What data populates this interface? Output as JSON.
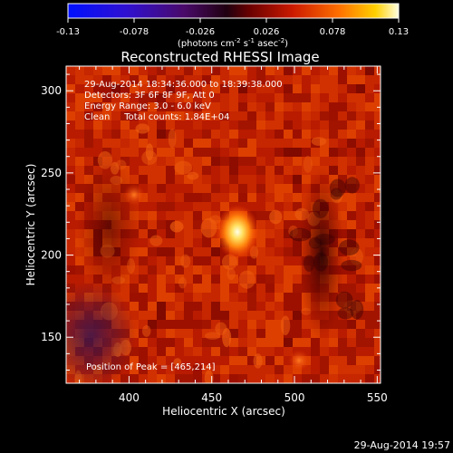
{
  "colorbar": {
    "ticks": [
      "-0.13",
      "-0.078",
      "-0.026",
      "0.026",
      "0.078",
      "0.13"
    ],
    "units_main": "(photons cm",
    "units_exp1": "-2",
    "units_mid": " s",
    "units_exp2": "-1",
    "units_tail": " asec",
    "units_exp3": "-2",
    "units_close": ")"
  },
  "plot": {
    "title": "Reconstructed RHESSI Image",
    "xlabel": "Heliocentric X (arcsec)",
    "ylabel": "Heliocentric Y (arcsec)",
    "x_range": [
      362,
      552
    ],
    "y_range": [
      122,
      315
    ],
    "x_ticks": [
      "400",
      "450",
      "500",
      "550"
    ],
    "x_tick_values": [
      400,
      450,
      500,
      550
    ],
    "y_ticks": [
      "150",
      "200",
      "250",
      "300"
    ],
    "y_tick_values": [
      150,
      200,
      250,
      300
    ],
    "info_lines": [
      "29-Aug-2014 18:34:36.000 to 18:39:38.000",
      "Detectors: 3F 6F 8F 9F, Att 0",
      "Energy Range: 3.0 - 6.0 keV",
      "Clean     Total counts: 1.84E+04"
    ],
    "peak_label": "Position of Peak = [465,214]",
    "peak": [
      465,
      214
    ]
  },
  "footer_timestamp": "29-Aug-2014 19:57"
}
